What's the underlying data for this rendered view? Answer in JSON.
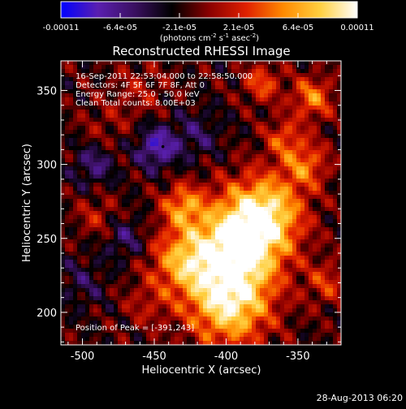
{
  "colorbar": {
    "tick_labels": [
      "-0.00011",
      "-6.4e-05",
      "-2.1e-05",
      "2.1e-05",
      "6.4e-05",
      "0.00011"
    ],
    "units": "(photons cm",
    "units_exp1": "-2",
    "units_mid": " s",
    "units_exp2": "-1",
    "units_mid2": " asec",
    "units_exp3": "-2",
    "units_end": ")",
    "stops": [
      "#0000ff",
      "#5a1fb0",
      "#3a1060",
      "#000000",
      "#8a0000",
      "#e02000",
      "#ff8a00",
      "#ffd040",
      "#ffffff"
    ]
  },
  "chart_data": {
    "type": "heatmap",
    "title": "Reconstructed RHESSI Image",
    "xlabel": "Heliocentric X (arcsec)",
    "ylabel": "Heliocentric Y (arcsec)",
    "xlim": [
      -515,
      -320
    ],
    "ylim": [
      178,
      370
    ],
    "xticks": [
      -500,
      -450,
      -400,
      -350
    ],
    "yticks": [
      200,
      250,
      300,
      350
    ],
    "annotations": {
      "line1": "16-Sep-2011 22:53:04.000 to 22:58:50.000",
      "line2": "Detectors: 4F 5F 6F 7F 8F, Att 0",
      "line3": "Energy Range: 25.0 - 50.0 keV",
      "line4": "Clean    Total counts: 8.00E+03",
      "peak": "Position of Peak = [-391,243]"
    },
    "peak": [
      -391,
      243
    ],
    "marker": [
      -444,
      312
    ],
    "sources": [
      {
        "x": -392,
        "y": 245,
        "amp": 1.0,
        "s": 22
      },
      {
        "x": -372,
        "y": 268,
        "amp": 0.75,
        "s": 18
      },
      {
        "x": -398,
        "y": 205,
        "amp": 0.85,
        "s": 20
      },
      {
        "x": -430,
        "y": 235,
        "amp": 0.6,
        "s": 16
      },
      {
        "x": -430,
        "y": 272,
        "amp": 0.55,
        "s": 10
      },
      {
        "x": -340,
        "y": 345,
        "amp": 0.55,
        "s": 10
      },
      {
        "x": -375,
        "y": 355,
        "amp": 0.45,
        "s": 9
      },
      {
        "x": -345,
        "y": 300,
        "amp": 0.5,
        "s": 11
      },
      {
        "x": -360,
        "y": 318,
        "amp": 0.4,
        "s": 9
      },
      {
        "x": -330,
        "y": 220,
        "amp": 0.35,
        "s": 10
      },
      {
        "x": -490,
        "y": 265,
        "amp": 0.25,
        "s": 10
      },
      {
        "x": -485,
        "y": 325,
        "amp": 0.15,
        "s": 12
      },
      {
        "x": -460,
        "y": 350,
        "amp": 0.2,
        "s": 14
      },
      {
        "x": -448,
        "y": 312,
        "amp": -0.55,
        "s": 10
      },
      {
        "x": -492,
        "y": 300,
        "amp": -0.35,
        "s": 10
      },
      {
        "x": -470,
        "y": 250,
        "amp": -0.3,
        "s": 10
      },
      {
        "x": -420,
        "y": 320,
        "amp": -0.25,
        "s": 12
      },
      {
        "x": -500,
        "y": 220,
        "amp": -0.2,
        "s": 12
      },
      {
        "x": -455,
        "y": 205,
        "amp": 0.2,
        "s": 12
      }
    ]
  },
  "footer": {
    "timestamp": "28-Aug-2013 06:20"
  }
}
